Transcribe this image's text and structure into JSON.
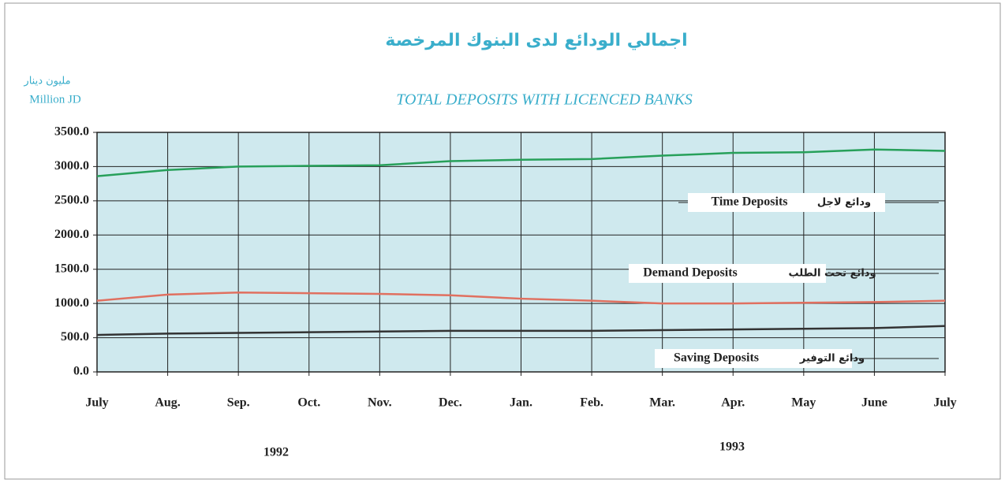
{
  "chart_data": {
    "type": "line",
    "title": "TOTAL DEPOSITS WITH LICENCED BANKS",
    "title_ar": "اجمالي الودائع لدى البنوك المرخصة",
    "y_label": "Million JD",
    "y_label_ar": "مليون دينار",
    "categories": [
      "July",
      "Aug.",
      "Sep.",
      "Oct.",
      "Nov.",
      "Dec.",
      "Jan.",
      "Feb.",
      "Mar.",
      "Apr.",
      "May",
      "June",
      "July"
    ],
    "years": [
      "1992",
      "1993"
    ],
    "series": [
      {
        "name": "Time Deposits",
        "name_ar": "ودائع لاجل",
        "color": "#27a05a",
        "values": [
          2860,
          2950,
          3000,
          3010,
          3020,
          3080,
          3100,
          3110,
          3160,
          3200,
          3210,
          3250,
          3230
        ]
      },
      {
        "name": "Demand Deposits",
        "name_ar": "ودائع تحت الطلب",
        "color": "#e07060",
        "values": [
          1040,
          1130,
          1160,
          1150,
          1140,
          1120,
          1070,
          1040,
          1000,
          1000,
          1010,
          1020,
          1040
        ]
      },
      {
        "name": "Saving Deposits",
        "name_ar": "ودائع التوفير",
        "color": "#333333",
        "values": [
          540,
          560,
          570,
          580,
          590,
          600,
          600,
          600,
          610,
          620,
          630,
          640,
          670
        ]
      }
    ],
    "ylim": [
      0,
      3500
    ],
    "yticks": [
      {
        "value": 0,
        "label": "0.0"
      },
      {
        "value": 500,
        "label": "500.0"
      },
      {
        "value": 1000,
        "label": "1000.0"
      },
      {
        "value": 1500,
        "label": "1500.0"
      },
      {
        "value": 2000,
        "label": "2000.0"
      },
      {
        "value": 2500,
        "label": "2500.0"
      },
      {
        "value": 3000,
        "label": "3000.0"
      },
      {
        "value": 3500,
        "label": "3500.0"
      }
    ],
    "grid": true
  }
}
